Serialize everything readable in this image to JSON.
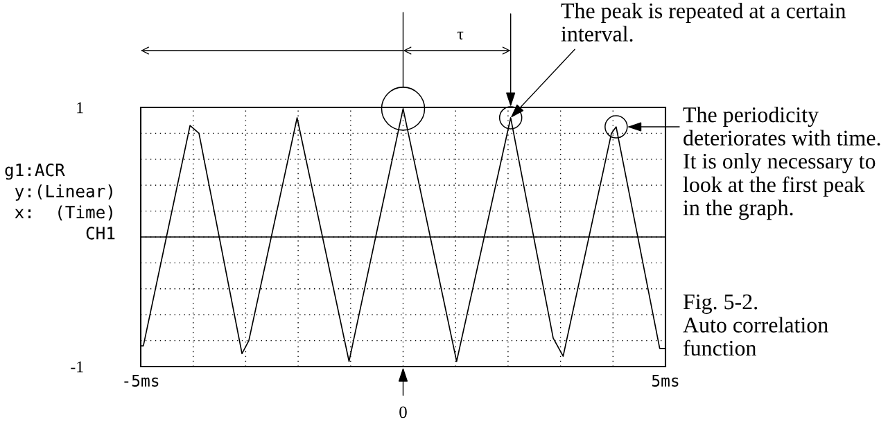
{
  "chart_data": {
    "type": "line",
    "title": "Fig. 5-2.\nAuto correlation function",
    "x": [
      -5.0,
      -4.95,
      -4.06,
      -3.89,
      -3.07,
      -2.94,
      -2.02,
      -1.03,
      0.0,
      1.02,
      2.05,
      2.86,
      3.05,
      3.97,
      4.06,
      4.89,
      5.0
    ],
    "series": [
      {
        "color": "#000000",
        "values": [
          -0.84,
          -0.84,
          0.86,
          0.8,
          -0.9,
          -0.8,
          0.92,
          -0.96,
          0.99,
          -0.96,
          0.92,
          -0.78,
          -0.92,
          0.8,
          0.85,
          -0.86,
          -0.86
        ]
      }
    ],
    "xlim": [
      -5,
      5
    ],
    "xticks": [
      {
        "value": -5,
        "label": "-5ms"
      },
      {
        "value": -4,
        "label": null
      },
      {
        "value": -3,
        "label": null
      },
      {
        "value": -2,
        "label": null
      },
      {
        "value": -1,
        "label": null
      },
      {
        "value": 0,
        "label": null
      },
      {
        "value": 1,
        "label": null
      },
      {
        "value": 2,
        "label": null
      },
      {
        "value": 3,
        "label": null
      },
      {
        "value": 4,
        "label": null
      },
      {
        "value": 5,
        "label": "5ms"
      }
    ],
    "ylim": [
      -1,
      1
    ],
    "yticks": [
      -1,
      {
        "value": -0.8,
        "label": null
      },
      {
        "value": -0.6,
        "label": null
      },
      {
        "value": -0.4,
        "label": null
      },
      {
        "value": -0.2,
        "label": null
      },
      {
        "value": 0,
        "label": null
      },
      {
        "value": 0.2,
        "label": null
      },
      {
        "value": 0.4,
        "label": null
      },
      {
        "value": 0.6,
        "label": null
      },
      {
        "value": 0.8,
        "label": null
      },
      1
    ],
    "grid": true,
    "ref_lines": [
      {
        "axis": "y",
        "value": 0,
        "color": "#000000"
      }
    ],
    "annotations": [
      "g1:ACR\n y:(Linear)\n x:  (Time)\n        CH1",
      "τ",
      {
        "text": "The peak is repeated at a certain interval.",
        "x": 2.05,
        "y": 0.92
      },
      "The periodicity deteriorates with time. It is only necessary to look at the first peak in the graph.",
      "0"
    ]
  }
}
